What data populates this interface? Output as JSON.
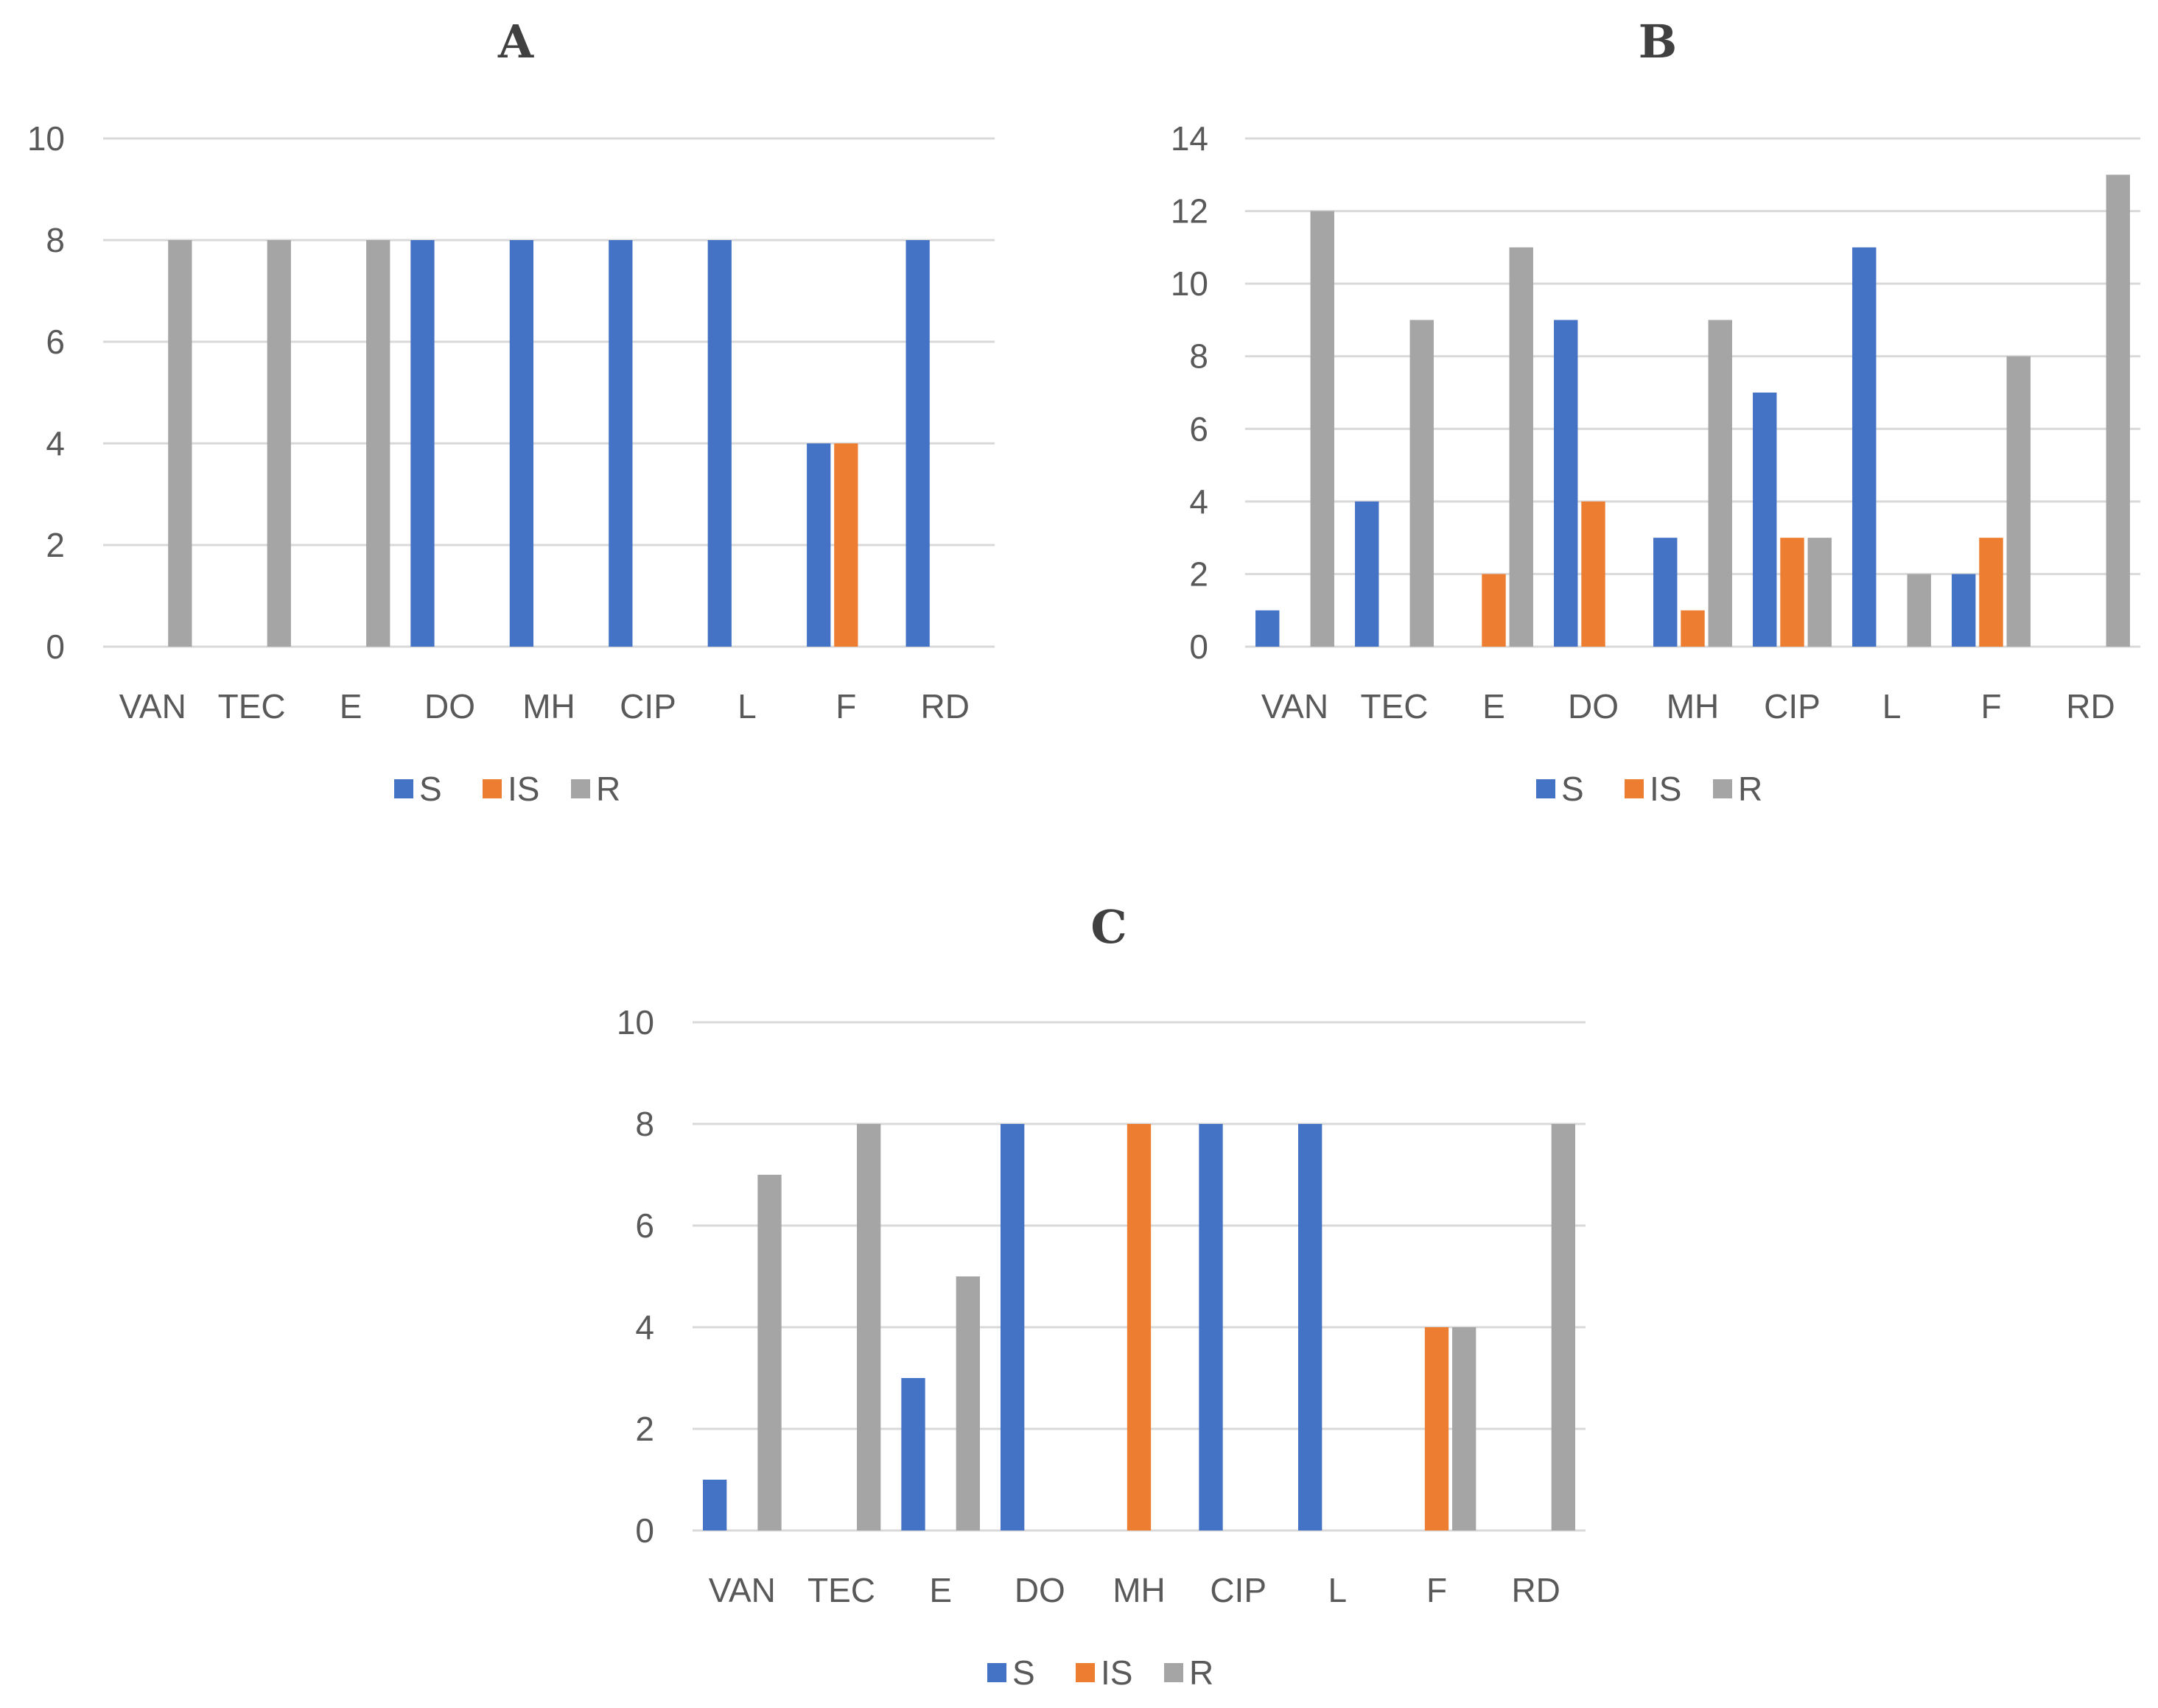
{
  "colors": {
    "S": "#4472c4",
    "IS": "#ed7d31",
    "R": "#a5a5a5"
  },
  "chart_data": [
    {
      "type": "bar",
      "title": "A",
      "categories": [
        "VAN",
        "TEC",
        "E",
        "DO",
        "MH",
        "CIP",
        "L",
        "F",
        "RD"
      ],
      "ylim": [
        0,
        10
      ],
      "yticks": [
        0,
        2,
        4,
        6,
        8,
        10
      ],
      "grid": true,
      "legend": "bottom-center",
      "series": [
        {
          "name": "S",
          "values": [
            0,
            0,
            0,
            8,
            8,
            8,
            8,
            4,
            8
          ]
        },
        {
          "name": "IS",
          "values": [
            0,
            0,
            0,
            0,
            0,
            0,
            0,
            4,
            0
          ]
        },
        {
          "name": "R",
          "values": [
            8,
            8,
            8,
            0,
            0,
            0,
            0,
            0,
            0
          ]
        }
      ]
    },
    {
      "type": "bar",
      "title": "B",
      "categories": [
        "VAN",
        "TEC",
        "E",
        "DO",
        "MH",
        "CIP",
        "L",
        "F",
        "RD"
      ],
      "ylim": [
        0,
        14
      ],
      "yticks": [
        0,
        2,
        4,
        6,
        8,
        10,
        12,
        14
      ],
      "grid": true,
      "legend": "bottom-center",
      "series": [
        {
          "name": "S",
          "values": [
            1,
            4,
            0,
            9,
            3,
            7,
            11,
            2,
            0
          ]
        },
        {
          "name": "IS",
          "values": [
            0,
            0,
            2,
            4,
            1,
            3,
            0,
            3,
            0
          ]
        },
        {
          "name": "R",
          "values": [
            12,
            9,
            11,
            0,
            9,
            3,
            2,
            8,
            13
          ]
        }
      ]
    },
    {
      "type": "bar",
      "title": "C",
      "categories": [
        "VAN",
        "TEC",
        "E",
        "DO",
        "MH",
        "CIP",
        "L",
        "F",
        "RD"
      ],
      "ylim": [
        0,
        10
      ],
      "yticks": [
        0,
        2,
        4,
        6,
        8,
        10
      ],
      "grid": true,
      "legend": "bottom-center",
      "series": [
        {
          "name": "S",
          "values": [
            1,
            0,
            3,
            8,
            0,
            8,
            8,
            0,
            0
          ]
        },
        {
          "name": "IS",
          "values": [
            0,
            0,
            0,
            0,
            8,
            0,
            0,
            4,
            0
          ]
        },
        {
          "name": "R",
          "values": [
            7,
            8,
            5,
            0,
            0,
            0,
            0,
            4,
            8
          ]
        }
      ]
    }
  ]
}
